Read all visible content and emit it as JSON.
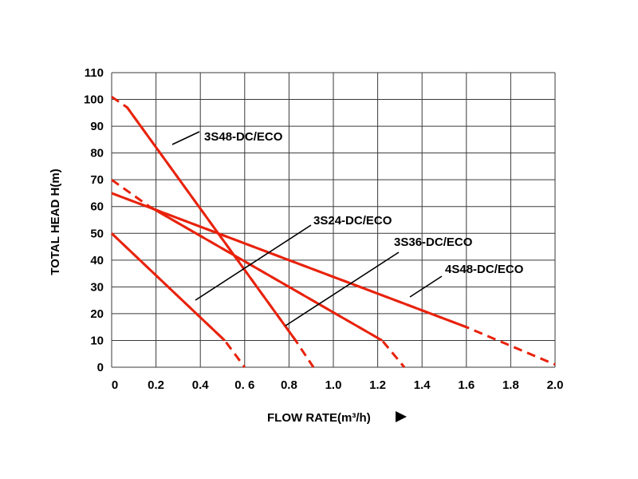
{
  "chart_data": {
    "type": "line",
    "xlabel": "FLOW RATE(m³/h)",
    "ylabel": "TOTAL  HEAD  H(m)",
    "xlim": [
      0,
      2.0
    ],
    "ylim": [
      0,
      110
    ],
    "x_ticks": [
      "0",
      "0.2",
      "0.4",
      "0. 6",
      "0.8",
      "1.0",
      "1.2",
      "1.4",
      "1.6",
      "1.8",
      "2.0"
    ],
    "y_ticks": [
      "0",
      "10",
      "20",
      "30",
      "40",
      "50",
      "60",
      "70",
      "80",
      "90",
      "100",
      "110"
    ],
    "grid": true,
    "line_color": "#e8220c",
    "series": [
      {
        "name": "3S48-DC/ECO",
        "solid": [
          [
            0.07,
            97
          ],
          [
            0.83,
            10
          ]
        ],
        "dashed": [
          [
            0,
            101
          ],
          [
            0.07,
            97
          ],
          [
            0.83,
            10
          ],
          [
            0.91,
            0
          ]
        ]
      },
      {
        "name": "3S24-DC/ECO",
        "solid": [
          [
            0,
            50
          ],
          [
            0.51,
            10
          ]
        ],
        "dashed": [
          [
            0,
            50
          ],
          [
            0.51,
            10
          ],
          [
            0.6,
            0
          ]
        ]
      },
      {
        "name": "3S36-DC/ECO",
        "solid": [
          [
            0.17,
            60
          ],
          [
            1.22,
            10
          ]
        ],
        "dashed": [
          [
            0,
            70
          ],
          [
            0.17,
            60
          ],
          [
            1.22,
            10
          ],
          [
            1.32,
            0
          ]
        ]
      },
      {
        "name": "4S48-DC/ECO",
        "solid": [
          [
            0,
            65
          ],
          [
            1.6,
            15
          ]
        ],
        "dashed": [
          [
            0,
            65
          ],
          [
            1.6,
            15
          ],
          [
            2.0,
            1
          ]
        ]
      }
    ],
    "annotations": [
      {
        "series": "3S48-DC/ECO",
        "text": "3S48-DC/ECO"
      },
      {
        "series": "3S24-DC/ECO",
        "text": "3S24-DC/ECO"
      },
      {
        "series": "3S36-DC/ECO",
        "text": "3S36-DC/ECO"
      },
      {
        "series": "4S48-DC/ECO",
        "text": "4S48-DC/ECO"
      }
    ]
  }
}
